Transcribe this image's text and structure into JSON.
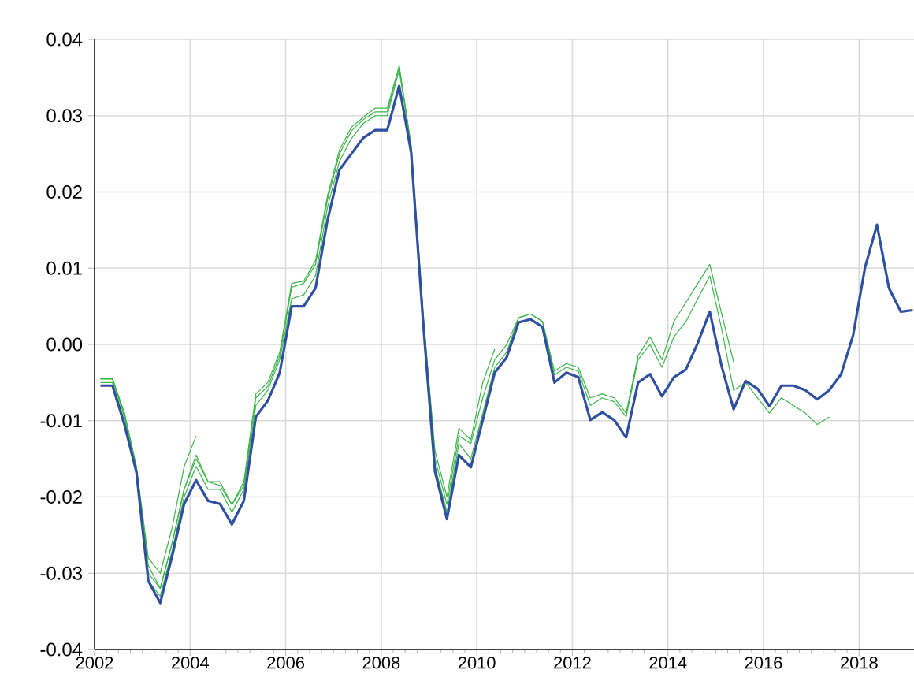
{
  "chart_data": {
    "type": "line",
    "xlim": [
      2002,
      2019.15
    ],
    "ylim": [
      -0.04,
      0.04
    ],
    "xticks": [
      2002,
      2004,
      2006,
      2008,
      2010,
      2012,
      2014,
      2016,
      2018
    ],
    "yticks": [
      {
        "value": -0.04,
        "label": "-0.04"
      },
      {
        "value": -0.03,
        "label": "-0.03"
      },
      {
        "value": -0.02,
        "label": "-0.02"
      },
      {
        "value": -0.01,
        "label": "-0.01"
      },
      {
        "value": 0,
        "label": "0.00"
      },
      {
        "value": 0.01,
        "label": "0.01"
      },
      {
        "value": 0.02,
        "label": "0.02"
      },
      {
        "value": 0.03,
        "label": "0.03"
      },
      {
        "value": 0.04,
        "label": "0.04"
      }
    ],
    "grid": true,
    "marker": "none",
    "line_style": "solid",
    "x": [
      2002.125,
      2002.375,
      2002.625,
      2002.875,
      2003.125,
      2003.375,
      2003.625,
      2003.875,
      2004.125,
      2004.375,
      2004.625,
      2004.875,
      2005.125,
      2005.375,
      2005.625,
      2005.875,
      2006.125,
      2006.375,
      2006.625,
      2006.875,
      2007.125,
      2007.375,
      2007.625,
      2007.875,
      2008.125,
      2008.375,
      2008.625,
      2008.875,
      2009.125,
      2009.375,
      2009.625,
      2009.875,
      2010.125,
      2010.375,
      2010.625,
      2010.875,
      2011.125,
      2011.375,
      2011.625,
      2011.875,
      2012.125,
      2012.375,
      2012.625,
      2012.875,
      2013.125,
      2013.375,
      2013.625,
      2013.875,
      2014.125,
      2014.375,
      2014.625,
      2014.875,
      2015.125,
      2015.375,
      2015.625,
      2015.875,
      2016.125,
      2016.375,
      2016.625,
      2016.875,
      2017.125,
      2017.375,
      2017.625,
      2017.875,
      2018.125,
      2018.375,
      2018.625,
      2018.875,
      2019.125
    ],
    "series": [
      {
        "color": "#3cb44a",
        "values": [
          -0.0045,
          -0.0045,
          -0.009,
          -0.016,
          -0.028,
          -0.03,
          -0.024,
          -0.016,
          -0.012,
          null,
          null,
          null,
          null,
          null,
          null,
          null,
          null,
          null,
          null,
          null,
          null,
          null,
          null,
          null,
          null,
          null,
          null,
          null,
          null,
          null,
          null,
          null,
          null,
          null,
          null,
          null,
          null,
          null,
          null,
          null,
          null,
          null,
          null,
          null,
          null,
          null,
          null,
          null,
          null,
          null,
          null,
          null,
          null,
          null,
          null,
          null,
          null,
          null,
          null,
          null,
          null,
          null,
          null,
          null,
          null,
          null,
          null,
          null,
          null
        ]
      },
      {
        "color": "#3cb44a",
        "values": [
          -0.0045,
          -0.0045,
          -0.009,
          -0.016,
          -0.029,
          -0.032,
          -0.026,
          -0.019,
          -0.0145,
          -0.018,
          -0.018,
          -0.021,
          -0.018,
          -0.0065,
          -0.005,
          -0.001,
          0.008,
          0.0083,
          0.011,
          0.0195,
          0.0255,
          0.0285,
          0.0298,
          0.031,
          0.031,
          0.0365,
          0.026,
          0.004,
          -0.014,
          -0.02,
          -0.011,
          -0.0125,
          -0.005,
          -0.0006,
          null,
          null,
          null,
          null,
          null,
          null,
          null,
          null,
          null,
          null,
          null,
          null,
          null,
          null,
          null,
          null,
          null,
          null,
          null,
          null,
          null,
          null,
          null,
          null,
          null,
          null,
          null,
          null,
          null,
          null,
          null,
          null,
          null,
          null,
          null
        ]
      },
      {
        "color": "#3cb44a",
        "values": [
          -0.0045,
          -0.0045,
          -0.0095,
          -0.0165,
          -0.03,
          -0.032,
          -0.026,
          -0.019,
          -0.015,
          -0.018,
          -0.0185,
          -0.021,
          -0.0185,
          -0.007,
          -0.0055,
          -0.0015,
          0.0075,
          0.008,
          0.0105,
          0.019,
          0.025,
          0.028,
          0.0295,
          0.0305,
          0.0305,
          0.0365,
          0.026,
          0.004,
          -0.015,
          -0.021,
          -0.012,
          -0.013,
          -0.007,
          -0.002,
          0.0,
          0.0035,
          0.004,
          0.003,
          -0.0035,
          -0.0025,
          -0.003,
          -0.007,
          -0.0065,
          -0.007,
          -0.009,
          -0.0015,
          0.001,
          -0.002,
          0.003,
          0.0055,
          0.008,
          0.0105,
          0.004,
          -0.0023,
          null,
          null,
          null,
          null,
          null,
          null,
          null,
          null,
          null,
          null,
          null,
          null,
          null,
          null,
          null
        ]
      },
      {
        "color": "#3cb44a",
        "values": [
          -0.005,
          -0.005,
          -0.01,
          -0.017,
          -0.031,
          -0.033,
          -0.027,
          -0.02,
          -0.016,
          -0.019,
          -0.019,
          -0.022,
          -0.019,
          -0.008,
          -0.006,
          -0.002,
          0.006,
          0.0065,
          0.009,
          0.018,
          0.024,
          0.027,
          0.029,
          0.03,
          0.03,
          0.036,
          0.026,
          0.003,
          -0.016,
          -0.022,
          -0.013,
          -0.015,
          -0.009,
          -0.003,
          -0.001,
          0.0035,
          0.004,
          0.003,
          -0.004,
          -0.003,
          -0.0035,
          -0.008,
          -0.007,
          -0.0075,
          -0.0095,
          -0.002,
          0.0,
          -0.003,
          0.001,
          0.003,
          0.006,
          0.009,
          0.002,
          -0.006,
          -0.005,
          -0.007,
          -0.009,
          -0.007,
          -0.008,
          -0.009,
          -0.0105,
          -0.0095,
          null,
          null,
          null,
          null,
          null,
          null,
          null
        ]
      },
      {
        "color": "#2f4fa0",
        "values": [
          -0.0054,
          -0.0054,
          -0.0105,
          -0.0167,
          -0.031,
          -0.0339,
          -0.0277,
          -0.0209,
          -0.0178,
          -0.0205,
          -0.0209,
          -0.0236,
          -0.0205,
          -0.0095,
          -0.0074,
          -0.0037,
          0.005,
          0.005,
          0.0074,
          0.0163,
          0.0229,
          0.025,
          0.0271,
          0.0281,
          0.0281,
          0.0339,
          0.0252,
          0.003,
          -0.0167,
          -0.0229,
          -0.0145,
          -0.0161,
          -0.0099,
          -0.0037,
          -0.0017,
          0.0029,
          0.0033,
          0.0023,
          -0.005,
          -0.0037,
          -0.0043,
          -0.0099,
          -0.0089,
          -0.0099,
          -0.0122,
          -0.005,
          -0.0039,
          -0.0068,
          -0.0043,
          -0.0033,
          0.0002,
          0.0043,
          -0.0029,
          -0.0085,
          -0.0048,
          -0.0058,
          -0.0081,
          -0.0054,
          -0.0054,
          -0.006,
          -0.0072,
          -0.006,
          -0.0039,
          0.0012,
          0.0101,
          0.0157,
          0.0074,
          0.0043,
          0.0045
        ]
      }
    ]
  }
}
